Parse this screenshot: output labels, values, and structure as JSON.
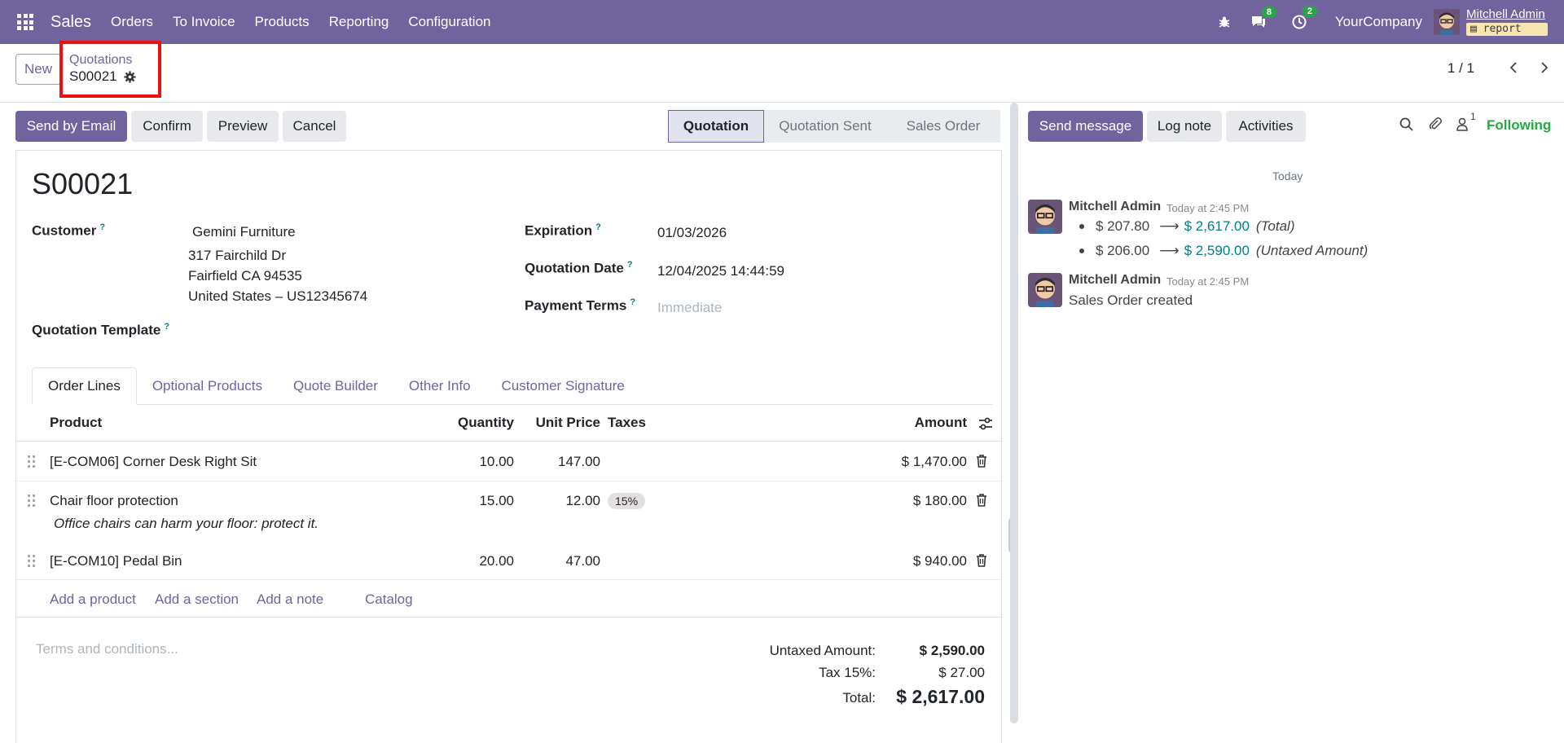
{
  "nav": {
    "app_name": "Sales",
    "menu": [
      "Orders",
      "To Invoice",
      "Products",
      "Reporting",
      "Configuration"
    ],
    "messages_count": "8",
    "activities_count": "2",
    "company": "YourCompany",
    "user_name": "Mitchell Admin",
    "database": "report"
  },
  "control_panel": {
    "new_label": "New",
    "breadcrumb_parent": "Quotations",
    "breadcrumb_current": "S00021",
    "pager": "1 / 1"
  },
  "actions": {
    "send_email": "Send by Email",
    "confirm": "Confirm",
    "preview": "Preview",
    "cancel": "Cancel"
  },
  "statusbar": [
    "Quotation",
    "Quotation Sent",
    "Sales Order"
  ],
  "form": {
    "name": "S00021",
    "customer_label": "Customer",
    "customer_name": "Gemini Furniture",
    "customer_address": [
      "317 Fairchild Dr",
      "Fairfield CA 94535",
      "United States – US12345674"
    ],
    "template_label": "Quotation Template",
    "expiration_label": "Expiration",
    "expiration_value": "01/03/2026",
    "quotation_date_label": "Quotation Date",
    "quotation_date_value": "12/04/2025 14:44:59",
    "payment_terms_label": "Payment Terms",
    "payment_terms_placeholder": "Immediate",
    "help_mark": "?"
  },
  "tabs": [
    "Order Lines",
    "Optional Products",
    "Quote Builder",
    "Other Info",
    "Customer Signature"
  ],
  "order_lines": {
    "headers": {
      "product": "Product",
      "quantity": "Quantity",
      "unit_price": "Unit Price",
      "taxes": "Taxes",
      "amount": "Amount"
    },
    "rows": [
      {
        "product": "[E-COM06] Corner Desk Right Sit",
        "quantity": "10.00",
        "unit_price": "147.00",
        "taxes": "",
        "amount": "$ 1,470.00",
        "note": ""
      },
      {
        "product": "Chair floor protection",
        "quantity": "15.00",
        "unit_price": "12.00",
        "taxes": "15%",
        "amount": "$ 180.00",
        "note": "Office chairs can harm your floor: protect it."
      },
      {
        "product": "[E-COM10] Pedal Bin",
        "quantity": "20.00",
        "unit_price": "47.00",
        "taxes": "",
        "amount": "$ 940.00",
        "note": ""
      }
    ],
    "add_product": "Add a product",
    "add_section": "Add a section",
    "add_note": "Add a note",
    "catalog": "Catalog"
  },
  "footer": {
    "terms_placeholder": "Terms and conditions...",
    "untaxed_label": "Untaxed Amount:",
    "untaxed_value": "$ 2,590.00",
    "tax_label": "Tax 15%:",
    "tax_value": "$ 27.00",
    "total_label": "Total:",
    "total_value": "$ 2,617.00"
  },
  "chatter": {
    "send_message": "Send message",
    "log_note": "Log note",
    "activities": "Activities",
    "followers_count": "1",
    "following": "Following",
    "today": "Today",
    "messages": [
      {
        "author": "Mitchell Admin",
        "time": "Today at 2:45 PM",
        "changes": [
          {
            "old": "$ 207.80",
            "new": "$ 2,617.00",
            "field": "(Total)"
          },
          {
            "old": "$ 206.00",
            "new": "$ 2,590.00",
            "field": "(Untaxed Amount)"
          }
        ]
      },
      {
        "author": "Mitchell Admin",
        "time": "Today at 2:45 PM",
        "text": "Sales Order created"
      }
    ]
  }
}
